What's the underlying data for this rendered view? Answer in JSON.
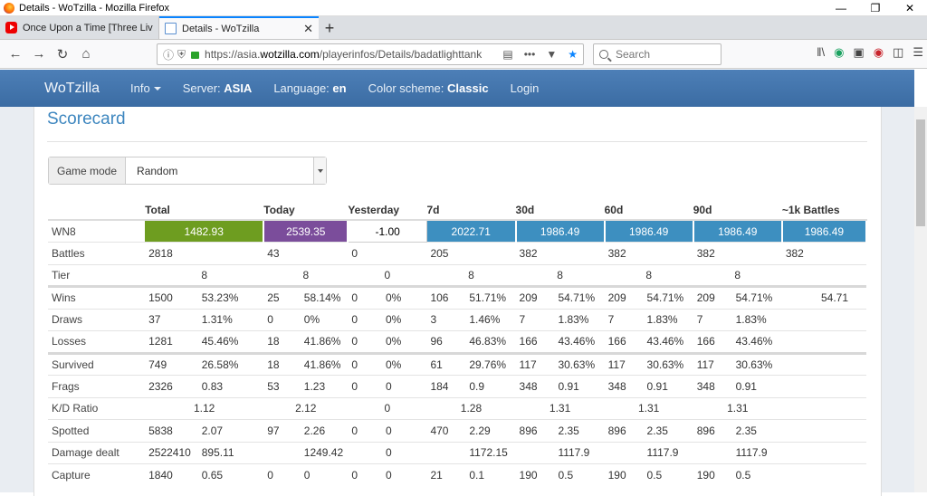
{
  "window": {
    "title": "Details - WoTzilla - Mozilla Firefox"
  },
  "tabs": [
    {
      "label": "Once Upon a Time [Three Live",
      "active": false
    },
    {
      "label": "Details - WoTzilla",
      "active": true
    }
  ],
  "address": {
    "prefix": "https://asia.",
    "domain": "wotzilla.com",
    "path": "/playerinfos/Details/badatlighttank"
  },
  "search": {
    "placeholder": "Search"
  },
  "site_nav": {
    "brand": "WoTzilla",
    "info": "Info",
    "server_label": "Server:",
    "server_value": "ASIA",
    "language_label": "Language:",
    "language_value": "en",
    "color_label": "Color scheme:",
    "color_value": "Classic",
    "login": "Login"
  },
  "scorecard": {
    "title": "Scorecard",
    "game_mode_label": "Game mode",
    "game_mode_value": "Random",
    "columns": [
      "Total",
      "Today",
      "Yesterday",
      "7d",
      "30d",
      "60d",
      "90d",
      "~1k Battles"
    ],
    "wn8": {
      "label": "WN8",
      "values": [
        "1482.93",
        "2539.35",
        "-1.00",
        "2022.71",
        "1986.49",
        "1986.49",
        "1986.49",
        "1986.49"
      ]
    },
    "battles": {
      "label": "Battles",
      "values": [
        "2818",
        "43",
        "0",
        "205",
        "382",
        "382",
        "382",
        "382"
      ]
    },
    "tier": {
      "label": "Tier",
      "values": [
        "8",
        "8",
        "0",
        "8",
        "8",
        "8",
        "8",
        ""
      ]
    },
    "wins": {
      "label": "Wins",
      "values": [
        [
          "1500",
          "53.23%"
        ],
        [
          "25",
          "58.14%"
        ],
        [
          "0",
          "0%"
        ],
        [
          "106",
          "51.71%"
        ],
        [
          "209",
          "54.71%"
        ],
        [
          "209",
          "54.71%"
        ],
        [
          "209",
          "54.71%"
        ],
        [
          "",
          "54.71"
        ]
      ]
    },
    "draws": {
      "label": "Draws",
      "values": [
        [
          "37",
          "1.31%"
        ],
        [
          "0",
          "0%"
        ],
        [
          "0",
          "0%"
        ],
        [
          "3",
          "1.46%"
        ],
        [
          "7",
          "1.83%"
        ],
        [
          "7",
          "1.83%"
        ],
        [
          "7",
          "1.83%"
        ],
        [
          "",
          ""
        ]
      ]
    },
    "losses": {
      "label": "Losses",
      "values": [
        [
          "1281",
          "45.46%"
        ],
        [
          "18",
          "41.86%"
        ],
        [
          "0",
          "0%"
        ],
        [
          "96",
          "46.83%"
        ],
        [
          "166",
          "43.46%"
        ],
        [
          "166",
          "43.46%"
        ],
        [
          "166",
          "43.46%"
        ],
        [
          "",
          ""
        ]
      ]
    },
    "survived": {
      "label": "Survived",
      "values": [
        [
          "749",
          "26.58%"
        ],
        [
          "18",
          "41.86%"
        ],
        [
          "0",
          "0%"
        ],
        [
          "61",
          "29.76%"
        ],
        [
          "117",
          "30.63%"
        ],
        [
          "117",
          "30.63%"
        ],
        [
          "117",
          "30.63%"
        ],
        [
          "",
          ""
        ]
      ]
    },
    "frags": {
      "label": "Frags",
      "values": [
        [
          "2326",
          "0.83"
        ],
        [
          "53",
          "1.23"
        ],
        [
          "0",
          "0"
        ],
        [
          "184",
          "0.9"
        ],
        [
          "348",
          "0.91"
        ],
        [
          "348",
          "0.91"
        ],
        [
          "348",
          "0.91"
        ],
        [
          "",
          ""
        ]
      ]
    },
    "kd": {
      "label": "K/D Ratio",
      "values": [
        "1.12",
        "2.12",
        "0",
        "1.28",
        "1.31",
        "1.31",
        "1.31",
        ""
      ]
    },
    "spotted": {
      "label": "Spotted",
      "values": [
        [
          "5838",
          "2.07"
        ],
        [
          "97",
          "2.26"
        ],
        [
          "0",
          "0"
        ],
        [
          "470",
          "2.29"
        ],
        [
          "896",
          "2.35"
        ],
        [
          "896",
          "2.35"
        ],
        [
          "896",
          "2.35"
        ],
        [
          "",
          ""
        ]
      ]
    },
    "damage": {
      "label": "Damage dealt",
      "values": [
        [
          "2522410",
          "895.11"
        ],
        [
          "",
          "1249.42"
        ],
        [
          "",
          "0"
        ],
        [
          "",
          "1172.15"
        ],
        [
          "",
          "1117.9"
        ],
        [
          "",
          "1117.9"
        ],
        [
          "",
          "1117.9"
        ],
        [
          "",
          ""
        ]
      ]
    },
    "capture": {
      "label": "Capture",
      "values": [
        [
          "1840",
          "0.65"
        ],
        [
          "0",
          "0"
        ],
        [
          "0",
          "0"
        ],
        [
          "21",
          "0.1"
        ],
        [
          "190",
          "0.5"
        ],
        [
          "190",
          "0.5"
        ],
        [
          "190",
          "0.5"
        ],
        [
          "",
          ""
        ]
      ]
    }
  }
}
